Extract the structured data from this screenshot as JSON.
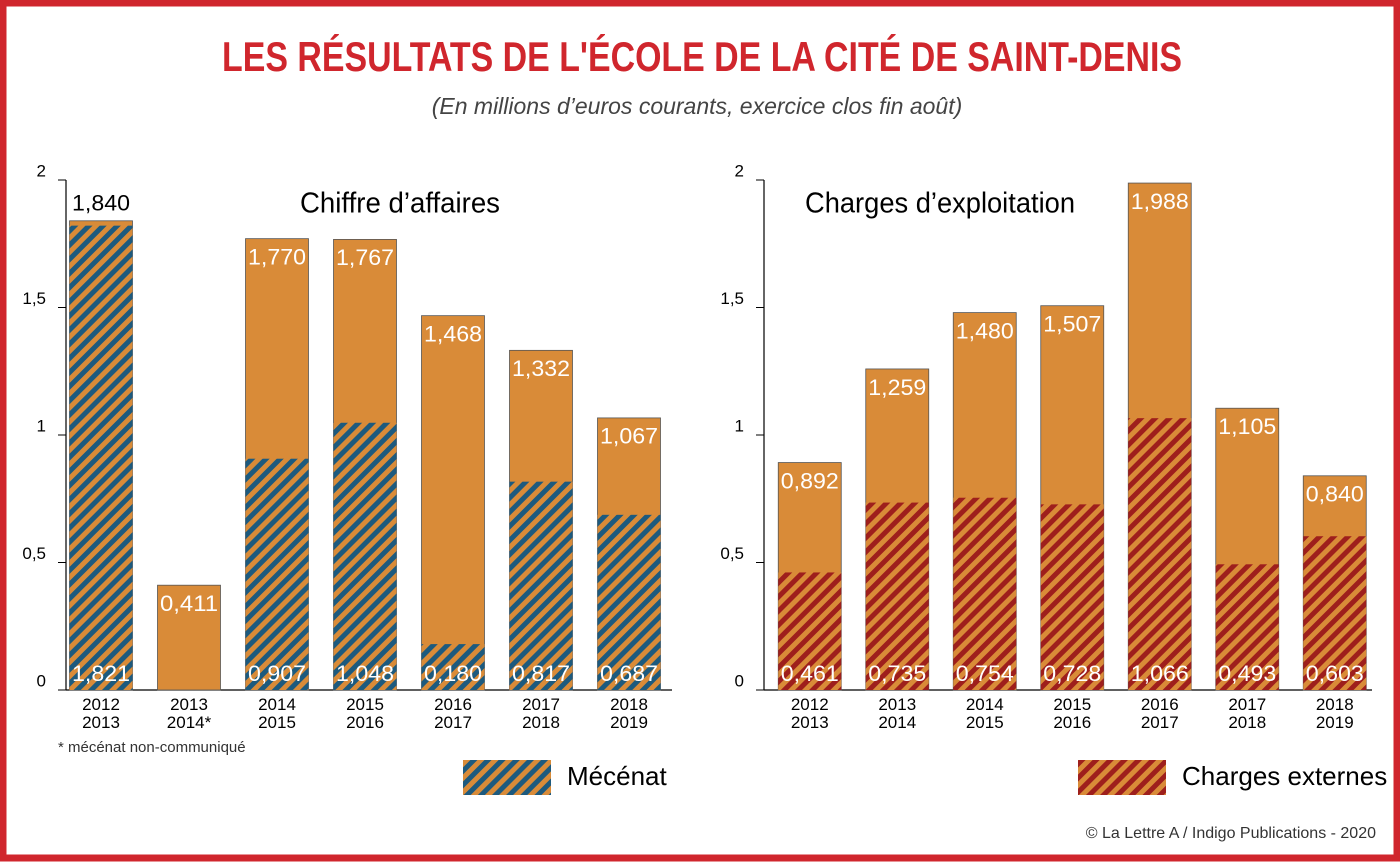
{
  "title": "LES RÉSULTATS DE L'ÉCOLE DE LA CITÉ DE SAINT-DENIS",
  "subtitle": "(En millions d’euros courants, exercice clos fin août)",
  "source": "© La Lettre A / Indigo Publications - 2020",
  "chart_data": [
    {
      "type": "bar",
      "barmode": "overlay",
      "title": "Chiffre d’affaires",
      "note": "* mécénat non-communiqué",
      "categories": [
        "2012\n2013",
        "2013\n2014*",
        "2014\n2015",
        "2015\n2016",
        "2016\n2017",
        "2017\n2018",
        "2018\n2019"
      ],
      "series": [
        {
          "color": "#d98b38",
          "hatch": false,
          "values": [
            1.84,
            0.411,
            1.77,
            1.767,
            1.468,
            1.332,
            1.067
          ],
          "value_labels": [
            "1,840",
            "0,411",
            "1,770",
            "1,767",
            "1,468",
            "1,332",
            "1,067"
          ]
        },
        {
          "name": "Mécénat",
          "color": "#1d5a7e",
          "hatch": true,
          "values": [
            1.821,
            null,
            0.907,
            1.048,
            0.18,
            0.817,
            0.687
          ],
          "value_labels": [
            "1,821",
            null,
            "0,907",
            "1,048",
            "0,180",
            "0,817",
            "0,687"
          ]
        }
      ],
      "ylim": [
        0,
        2
      ],
      "yticks": [
        0,
        {
          "value": 0.5,
          "label": "0,5"
        },
        1,
        {
          "value": 1.5,
          "label": "1,5"
        },
        2
      ],
      "grid": false,
      "legend": "bottom-right"
    },
    {
      "type": "bar",
      "barmode": "overlay",
      "title": "Charges d’exploitation",
      "categories": [
        "2012\n2013",
        "2013\n2014",
        "2014\n2015",
        "2015\n2016",
        "2016\n2017",
        "2017\n2018",
        "2018\n2019"
      ],
      "series": [
        {
          "color": "#d98b38",
          "hatch": false,
          "values": [
            0.892,
            1.259,
            1.48,
            1.507,
            1.988,
            1.105,
            0.84
          ],
          "value_labels": [
            "0,892",
            "1,259",
            "1,480",
            "1,507",
            "1,988",
            "1,105",
            "0,840"
          ]
        },
        {
          "name": "Charges externes",
          "color": "#9e1f1c",
          "hatch": true,
          "values": [
            0.461,
            0.735,
            0.754,
            0.728,
            1.066,
            0.493,
            0.603
          ],
          "value_labels": [
            "0,461",
            "0,735",
            "0,754",
            "0,728",
            "1,066",
            "0,493",
            "0,603"
          ]
        }
      ],
      "ylim": [
        0,
        2
      ],
      "yticks": [
        0,
        {
          "value": 0.5,
          "label": "0,5"
        },
        1,
        {
          "value": 1.5,
          "label": "1,5"
        },
        2
      ],
      "grid": false,
      "legend": "bottom-right"
    }
  ]
}
